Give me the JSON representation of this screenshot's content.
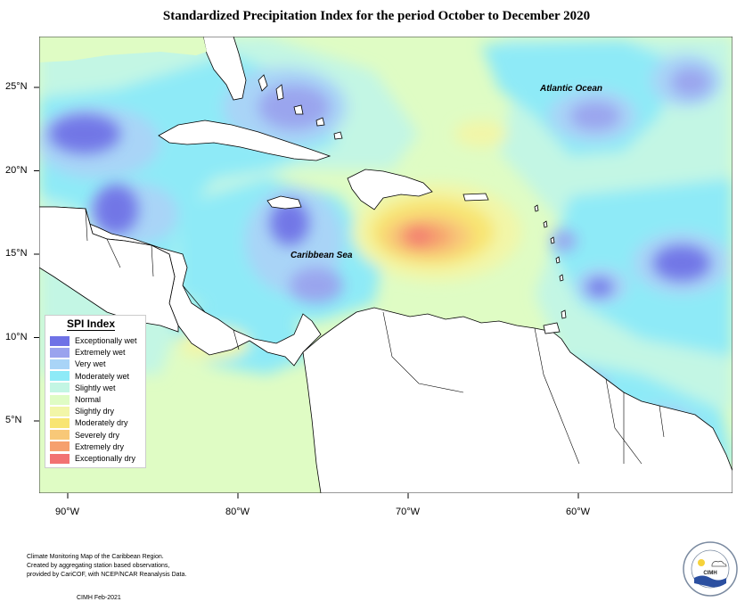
{
  "title": "Standardized Precipitation Index for the period October to December 2020",
  "axes": {
    "longitude_ticks": [
      {
        "value": -90,
        "label": "90°W"
      },
      {
        "value": -80,
        "label": "80°W"
      },
      {
        "value": -70,
        "label": "70°W"
      },
      {
        "value": -60,
        "label": "60°W"
      }
    ],
    "latitude_ticks": [
      {
        "value": 25,
        "label": "25°N"
      },
      {
        "value": 20,
        "label": "20°N"
      },
      {
        "value": 15,
        "label": "15°N"
      },
      {
        "value": 10,
        "label": "10°N"
      },
      {
        "value": 5,
        "label": "5°N"
      }
    ]
  },
  "map_labels": {
    "atlantic": "Atlantic Ocean",
    "caribbean": "Caribbean Sea"
  },
  "legend": {
    "title": "SPI Index",
    "items": [
      {
        "label": "Exceptionally wet",
        "color": "#6f72e6"
      },
      {
        "label": "Extremely wet",
        "color": "#9aa3ee"
      },
      {
        "label": "Very wet",
        "color": "#a9d4f7"
      },
      {
        "label": "Moderately wet",
        "color": "#8eeaf7"
      },
      {
        "label": "Slightly wet",
        "color": "#c3f6e4"
      },
      {
        "label": "Normal",
        "color": "#dffcc4"
      },
      {
        "label": "Slightly dry",
        "color": "#f2f6a8"
      },
      {
        "label": "Moderately dry",
        "color": "#f8e572"
      },
      {
        "label": "Severely dry",
        "color": "#f8c878"
      },
      {
        "label": "Extremely dry",
        "color": "#f6a06e"
      },
      {
        "label": "Exceptionally dry",
        "color": "#f27272"
      }
    ]
  },
  "credits": {
    "line1": "Climate Monitoring Map of the Caribbean Region.",
    "line2": "Created by aggregating station based observations,",
    "line3": "provided by CariCOF, with NCEP/NCAR Reanalysis Data.",
    "date": "CIMH Feb-2021"
  },
  "logo": {
    "text": "CIMH"
  }
}
